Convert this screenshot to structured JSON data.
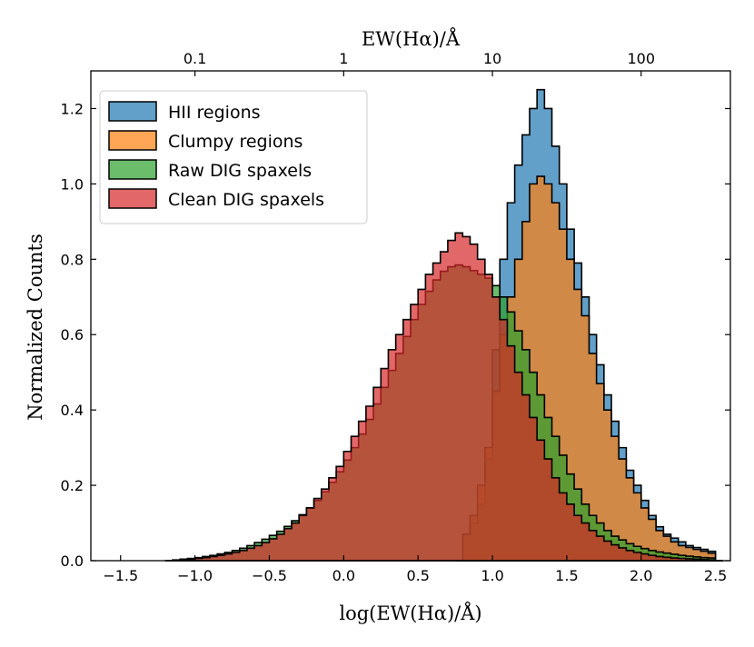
{
  "chart_data": {
    "type": "histogram",
    "xlabel": "log(EW(Hα)/Å)",
    "ylabel": "Normalized Counts",
    "top_xlabel": "EW(Hα)/Å",
    "xlim": [
      -1.7,
      2.6
    ],
    "ylim": [
      0,
      1.3
    ],
    "x_ticks": [
      -1.5,
      -1.0,
      -0.5,
      0.0,
      0.5,
      1.0,
      1.5,
      2.0,
      2.5
    ],
    "x_tick_labels": [
      "−1.5",
      "−1.0",
      "−0.5",
      "0.0",
      "0.5",
      "1.0",
      "1.5",
      "2.0",
      "2.5"
    ],
    "y_ticks": [
      0.0,
      0.2,
      0.4,
      0.6,
      0.8,
      1.0,
      1.2
    ],
    "y_tick_labels": [
      "0.0",
      "0.2",
      "0.4",
      "0.6",
      "0.8",
      "1.0",
      "1.2"
    ],
    "top_ticks": [
      -1,
      0,
      1,
      2
    ],
    "top_tick_labels": [
      "0.1",
      "1",
      "10",
      "100"
    ],
    "legend_position": "top-left",
    "bin_width": 0.05,
    "series": [
      {
        "name": "HII regions",
        "color": "#1f77b4",
        "points": [
          [
            0.75,
            0.0
          ],
          [
            0.8,
            0.07
          ],
          [
            0.85,
            0.1
          ],
          [
            0.9,
            0.15
          ],
          [
            0.95,
            0.27
          ],
          [
            1.0,
            0.56
          ],
          [
            1.05,
            0.8
          ],
          [
            1.1,
            0.95
          ],
          [
            1.15,
            1.05
          ],
          [
            1.2,
            1.13
          ],
          [
            1.25,
            1.2
          ],
          [
            1.3,
            1.25
          ],
          [
            1.35,
            1.2
          ],
          [
            1.4,
            1.1
          ],
          [
            1.45,
            1.0
          ],
          [
            1.5,
            0.88
          ],
          [
            1.55,
            0.79
          ],
          [
            1.6,
            0.7
          ],
          [
            1.65,
            0.6
          ],
          [
            1.7,
            0.52
          ],
          [
            1.75,
            0.44
          ],
          [
            1.8,
            0.37
          ],
          [
            1.85,
            0.3
          ],
          [
            1.9,
            0.24
          ],
          [
            1.95,
            0.2
          ],
          [
            2.0,
            0.16
          ],
          [
            2.05,
            0.12
          ],
          [
            2.1,
            0.09
          ],
          [
            2.15,
            0.07
          ],
          [
            2.2,
            0.06
          ],
          [
            2.25,
            0.05
          ],
          [
            2.3,
            0.04
          ],
          [
            2.35,
            0.035
          ],
          [
            2.4,
            0.03
          ],
          [
            2.45,
            0.025
          ],
          [
            2.5,
            0.0
          ]
        ]
      },
      {
        "name": "Clumpy regions",
        "color": "#ff7f0e",
        "points": [
          [
            0.75,
            0.0
          ],
          [
            0.8,
            0.07
          ],
          [
            0.85,
            0.12
          ],
          [
            0.9,
            0.2
          ],
          [
            0.95,
            0.3
          ],
          [
            1.0,
            0.45
          ],
          [
            1.05,
            0.6
          ],
          [
            1.1,
            0.7
          ],
          [
            1.15,
            0.8
          ],
          [
            1.2,
            0.9
          ],
          [
            1.25,
            1.0
          ],
          [
            1.3,
            1.02
          ],
          [
            1.35,
            1.0
          ],
          [
            1.4,
            0.95
          ],
          [
            1.45,
            0.88
          ],
          [
            1.5,
            0.8
          ],
          [
            1.55,
            0.72
          ],
          [
            1.6,
            0.65
          ],
          [
            1.65,
            0.55
          ],
          [
            1.7,
            0.47
          ],
          [
            1.75,
            0.4
          ],
          [
            1.8,
            0.33
          ],
          [
            1.85,
            0.27
          ],
          [
            1.9,
            0.22
          ],
          [
            1.95,
            0.18
          ],
          [
            2.0,
            0.14
          ],
          [
            2.05,
            0.11
          ],
          [
            2.1,
            0.08
          ],
          [
            2.15,
            0.065
          ],
          [
            2.2,
            0.05
          ],
          [
            2.25,
            0.04
          ],
          [
            2.3,
            0.035
          ],
          [
            2.35,
            0.03
          ],
          [
            2.4,
            0.025
          ],
          [
            2.45,
            0.02
          ],
          [
            2.5,
            0.0
          ]
        ]
      },
      {
        "name": "Raw DIG spaxels",
        "color": "#2ca02c",
        "points": [
          [
            -1.2,
            0.0
          ],
          [
            -1.15,
            0.002
          ],
          [
            -1.1,
            0.004
          ],
          [
            -1.05,
            0.006
          ],
          [
            -1.0,
            0.008
          ],
          [
            -0.95,
            0.011
          ],
          [
            -0.9,
            0.014
          ],
          [
            -0.85,
            0.018
          ],
          [
            -0.8,
            0.022
          ],
          [
            -0.75,
            0.027
          ],
          [
            -0.7,
            0.033
          ],
          [
            -0.65,
            0.04
          ],
          [
            -0.6,
            0.048
          ],
          [
            -0.55,
            0.057
          ],
          [
            -0.5,
            0.067
          ],
          [
            -0.45,
            0.078
          ],
          [
            -0.4,
            0.091
          ],
          [
            -0.35,
            0.106
          ],
          [
            -0.3,
            0.122
          ],
          [
            -0.25,
            0.14
          ],
          [
            -0.2,
            0.16
          ],
          [
            -0.15,
            0.183
          ],
          [
            -0.1,
            0.208
          ],
          [
            -0.05,
            0.236
          ],
          [
            0.0,
            0.267
          ],
          [
            0.05,
            0.3
          ],
          [
            0.1,
            0.336
          ],
          [
            0.15,
            0.375
          ],
          [
            0.2,
            0.416
          ],
          [
            0.25,
            0.46
          ],
          [
            0.3,
            0.505
          ],
          [
            0.35,
            0.55
          ],
          [
            0.4,
            0.595
          ],
          [
            0.45,
            0.64
          ],
          [
            0.5,
            0.68
          ],
          [
            0.55,
            0.715
          ],
          [
            0.6,
            0.745
          ],
          [
            0.65,
            0.768
          ],
          [
            0.7,
            0.78
          ],
          [
            0.75,
            0.785
          ],
          [
            0.8,
            0.78
          ],
          [
            0.85,
            0.77
          ],
          [
            0.9,
            0.76
          ],
          [
            0.95,
            0.75
          ],
          [
            1.0,
            0.73
          ],
          [
            1.05,
            0.7
          ],
          [
            1.1,
            0.66
          ],
          [
            1.15,
            0.61
          ],
          [
            1.2,
            0.56
          ],
          [
            1.25,
            0.5
          ],
          [
            1.3,
            0.44
          ],
          [
            1.35,
            0.38
          ],
          [
            1.4,
            0.33
          ],
          [
            1.45,
            0.28
          ],
          [
            1.5,
            0.23
          ],
          [
            1.55,
            0.19
          ],
          [
            1.6,
            0.15
          ],
          [
            1.65,
            0.12
          ],
          [
            1.7,
            0.1
          ],
          [
            1.75,
            0.08
          ],
          [
            1.8,
            0.065
          ],
          [
            1.85,
            0.055
          ],
          [
            1.9,
            0.045
          ],
          [
            1.95,
            0.038
          ],
          [
            2.0,
            0.032
          ],
          [
            2.05,
            0.027
          ],
          [
            2.1,
            0.023
          ],
          [
            2.15,
            0.02
          ],
          [
            2.2,
            0.017
          ],
          [
            2.25,
            0.014
          ],
          [
            2.3,
            0.012
          ],
          [
            2.35,
            0.01
          ],
          [
            2.4,
            0.008
          ],
          [
            2.45,
            0.007
          ],
          [
            2.5,
            0.0
          ]
        ]
      },
      {
        "name": "Clean DIG spaxels",
        "color": "#d62728",
        "points": [
          [
            -1.2,
            0.0
          ],
          [
            -1.15,
            0.001
          ],
          [
            -1.1,
            0.002
          ],
          [
            -1.05,
            0.004
          ],
          [
            -1.0,
            0.006
          ],
          [
            -0.95,
            0.008
          ],
          [
            -0.9,
            0.011
          ],
          [
            -0.85,
            0.014
          ],
          [
            -0.8,
            0.018
          ],
          [
            -0.75,
            0.022
          ],
          [
            -0.7,
            0.027
          ],
          [
            -0.65,
            0.033
          ],
          [
            -0.6,
            0.04
          ],
          [
            -0.55,
            0.048
          ],
          [
            -0.5,
            0.058
          ],
          [
            -0.45,
            0.07
          ],
          [
            -0.4,
            0.085
          ],
          [
            -0.35,
            0.1
          ],
          [
            -0.3,
            0.12
          ],
          [
            -0.25,
            0.14
          ],
          [
            -0.2,
            0.165
          ],
          [
            -0.15,
            0.19
          ],
          [
            -0.1,
            0.22
          ],
          [
            -0.05,
            0.25
          ],
          [
            0.0,
            0.29
          ],
          [
            0.05,
            0.33
          ],
          [
            0.1,
            0.37
          ],
          [
            0.15,
            0.41
          ],
          [
            0.2,
            0.46
          ],
          [
            0.25,
            0.51
          ],
          [
            0.3,
            0.56
          ],
          [
            0.35,
            0.6
          ],
          [
            0.4,
            0.64
          ],
          [
            0.45,
            0.68
          ],
          [
            0.5,
            0.72
          ],
          [
            0.55,
            0.76
          ],
          [
            0.6,
            0.79
          ],
          [
            0.65,
            0.82
          ],
          [
            0.7,
            0.85
          ],
          [
            0.75,
            0.87
          ],
          [
            0.8,
            0.86
          ],
          [
            0.85,
            0.84
          ],
          [
            0.9,
            0.8
          ],
          [
            0.95,
            0.76
          ],
          [
            1.0,
            0.7
          ],
          [
            1.05,
            0.64
          ],
          [
            1.1,
            0.57
          ],
          [
            1.15,
            0.5
          ],
          [
            1.2,
            0.44
          ],
          [
            1.25,
            0.38
          ],
          [
            1.3,
            0.32
          ],
          [
            1.35,
            0.27
          ],
          [
            1.4,
            0.22
          ],
          [
            1.45,
            0.18
          ],
          [
            1.5,
            0.15
          ],
          [
            1.55,
            0.12
          ],
          [
            1.6,
            0.1
          ],
          [
            1.65,
            0.08
          ],
          [
            1.7,
            0.065
          ],
          [
            1.75,
            0.052
          ],
          [
            1.8,
            0.042
          ],
          [
            1.85,
            0.034
          ],
          [
            1.9,
            0.027
          ],
          [
            1.95,
            0.022
          ],
          [
            2.0,
            0.018
          ],
          [
            2.05,
            0.014
          ],
          [
            2.1,
            0.011
          ],
          [
            2.15,
            0.009
          ],
          [
            2.2,
            0.007
          ],
          [
            2.25,
            0.006
          ],
          [
            2.3,
            0.005
          ],
          [
            2.35,
            0.004
          ],
          [
            2.4,
            0.003
          ],
          [
            2.45,
            0.002
          ],
          [
            2.5,
            0.0
          ]
        ]
      }
    ]
  }
}
